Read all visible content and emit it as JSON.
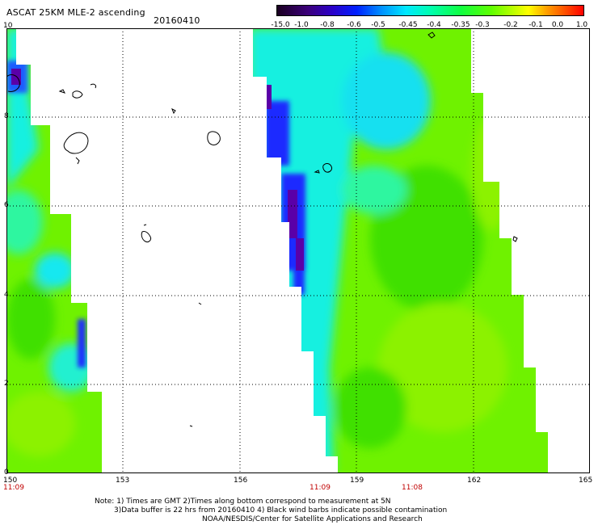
{
  "header": {
    "title": "ASCAT 25KM MLE-2 ascending",
    "date": "20160410"
  },
  "colorbar": {
    "ticks": [
      "-15.0",
      "-1.0",
      "-0.8",
      "-0.6",
      "-0.5",
      "-0.45",
      "-0.4",
      "-0.35",
      "-0.3",
      "-0.2",
      "-0.1",
      "0.0",
      "1.0"
    ]
  },
  "map": {
    "lon_labels": [
      "150",
      "153",
      "156",
      "159",
      "162",
      "165"
    ],
    "lat_labels": [
      "10",
      "8",
      "6",
      "4",
      "2",
      "0"
    ],
    "time_labels": [
      "11:09",
      "11:09",
      "11:08"
    ],
    "colors": {
      "swath_base": "#6ff200",
      "green_light": "#8cf200",
      "green_dark": "#3fe000",
      "cyan": "#17f0e0",
      "blue": "#1d2cff",
      "purple": "#5a00a8",
      "grid": "#000000",
      "time_label": "#c00000"
    }
  },
  "notes": {
    "line1": "Note: 1) Times are GMT 2)Times along bottom correspond to measurement at 5N",
    "line2": "3)Data buffer is 22 hrs from 20160410 4) Black wind barbs indicate possible contamination",
    "line3": "NOAA/NESDIS/Center for Satellite Applications and Research"
  }
}
